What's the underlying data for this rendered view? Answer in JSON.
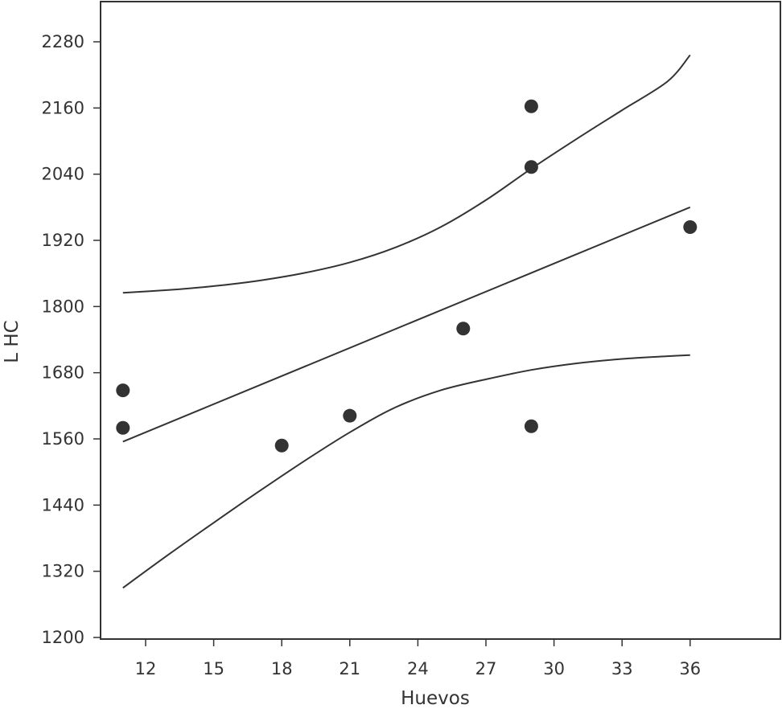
{
  "chart_data": {
    "type": "scatter",
    "title": "",
    "xlabel": "Huevos",
    "ylabel": "L HC",
    "xlim": [
      9,
      40
    ],
    "ylim": [
      1200,
      2340
    ],
    "x_ticks": [
      12,
      15,
      18,
      21,
      24,
      27,
      30,
      33,
      36
    ],
    "y_ticks": [
      1200,
      1320,
      1440,
      1560,
      1680,
      1800,
      1920,
      2040,
      2160,
      2280
    ],
    "points": [
      {
        "x": 11,
        "y": 1648
      },
      {
        "x": 11,
        "y": 1580
      },
      {
        "x": 18,
        "y": 1548
      },
      {
        "x": 21,
        "y": 1602
      },
      {
        "x": 26,
        "y": 1760
      },
      {
        "x": 29,
        "y": 2163
      },
      {
        "x": 29,
        "y": 2053
      },
      {
        "x": 29,
        "y": 1583
      },
      {
        "x": 36,
        "y": 1944
      }
    ],
    "fit_line": [
      {
        "x": 11,
        "y": 1555
      },
      {
        "x": 36,
        "y": 1980
      }
    ],
    "upper_band": [
      {
        "x": 11,
        "y": 1825
      },
      {
        "x": 13,
        "y": 1830
      },
      {
        "x": 15,
        "y": 1837
      },
      {
        "x": 17,
        "y": 1847
      },
      {
        "x": 19,
        "y": 1861
      },
      {
        "x": 21,
        "y": 1880
      },
      {
        "x": 23,
        "y": 1907
      },
      {
        "x": 25,
        "y": 1944
      },
      {
        "x": 27,
        "y": 1993
      },
      {
        "x": 29,
        "y": 2050
      },
      {
        "x": 31,
        "y": 2104
      },
      {
        "x": 33,
        "y": 2156
      },
      {
        "x": 35,
        "y": 2208
      },
      {
        "x": 36,
        "y": 2256
      }
    ],
    "lower_band": [
      {
        "x": 11,
        "y": 1290
      },
      {
        "x": 13,
        "y": 1350
      },
      {
        "x": 15,
        "y": 1408
      },
      {
        "x": 17,
        "y": 1465
      },
      {
        "x": 19,
        "y": 1520
      },
      {
        "x": 21,
        "y": 1572
      },
      {
        "x": 23,
        "y": 1617
      },
      {
        "x": 25,
        "y": 1648
      },
      {
        "x": 27,
        "y": 1668
      },
      {
        "x": 29,
        "y": 1685
      },
      {
        "x": 31,
        "y": 1697
      },
      {
        "x": 33,
        "y": 1705
      },
      {
        "x": 35,
        "y": 1710
      },
      {
        "x": 36,
        "y": 1712
      }
    ],
    "grid": false,
    "colors": {
      "points": "#333333",
      "lines": "#333333",
      "axis": "#333333"
    }
  }
}
